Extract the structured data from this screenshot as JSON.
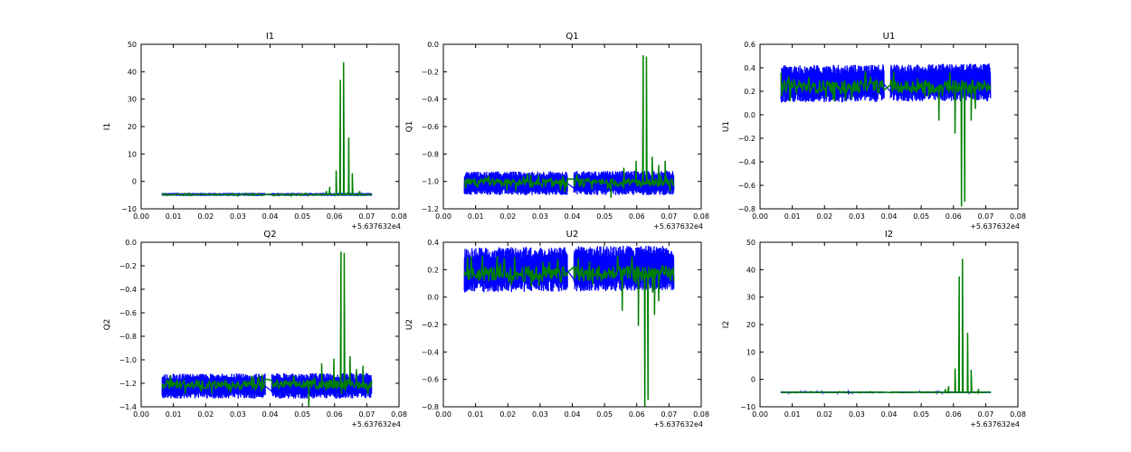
{
  "chart_data": [
    {
      "type": "line",
      "title": "I1",
      "ylabel": "I1",
      "xlabel": "",
      "xlim": [
        0.0,
        0.08
      ],
      "ylim": [
        -10,
        50
      ],
      "xticks": [
        "0.00",
        "0.01",
        "0.02",
        "0.03",
        "0.04",
        "0.05",
        "0.06",
        "0.07",
        "0.08"
      ],
      "yticks": [
        "−10",
        "0",
        "10",
        "20",
        "30",
        "40",
        "50"
      ],
      "yticks_values": [
        -10,
        0,
        10,
        20,
        30,
        40,
        50
      ],
      "x_offset_label": "+5.637632e4",
      "grid": false,
      "series": [
        {
          "color": "#0000ff",
          "kind": "band",
          "segments": [
            [
              0.0065,
              0.0385
            ],
            [
              0.0405,
              0.0715
            ]
          ],
          "y_low": [
            -5.3,
            -5.3
          ],
          "y_high": [
            -4.2,
            -4.2
          ]
        },
        {
          "color": "#008000",
          "kind": "noise",
          "baseline": -4.8,
          "spikes": [
            [
              0.0575,
              -3.5
            ],
            [
              0.0585,
              -2.0
            ],
            [
              0.0605,
              4.0
            ],
            [
              0.0618,
              37.0
            ],
            [
              0.0628,
              43.5
            ],
            [
              0.0644,
              16.0
            ],
            [
              0.0655,
              3.0
            ],
            [
              0.0678,
              -3.5
            ]
          ]
        }
      ]
    },
    {
      "type": "line",
      "title": "Q1",
      "ylabel": "Q1",
      "xlabel": "",
      "xlim": [
        0.0,
        0.08
      ],
      "ylim": [
        -1.2,
        0.0
      ],
      "xticks": [
        "0.00",
        "0.01",
        "0.02",
        "0.03",
        "0.04",
        "0.05",
        "0.06",
        "0.07",
        "0.08"
      ],
      "yticks": [
        "−1.2",
        "−1.0",
        "−0.8",
        "−0.6",
        "−0.4",
        "−0.2",
        "0.0"
      ],
      "yticks_values": [
        -1.2,
        -1.0,
        -0.8,
        -0.6,
        -0.4,
        -0.2,
        0.0
      ],
      "x_offset_label": "+5.637632e4",
      "grid": false,
      "series": [
        {
          "color": "#0000ff",
          "kind": "band",
          "segments": [
            [
              0.0065,
              0.0385
            ],
            [
              0.0405,
              0.0715
            ]
          ],
          "y_low": [
            -1.1,
            -1.1
          ],
          "y_high": [
            -0.93,
            -0.92
          ]
        },
        {
          "color": "#008000",
          "kind": "noise",
          "baseline": -1.01,
          "spikes": [
            [
              0.052,
              -1.12
            ],
            [
              0.056,
              -0.9
            ],
            [
              0.0598,
              -0.85
            ],
            [
              0.062,
              -0.08
            ],
            [
              0.063,
              -0.09
            ],
            [
              0.0648,
              -0.82
            ],
            [
              0.0668,
              -0.88
            ],
            [
              0.0688,
              -0.85
            ]
          ]
        }
      ]
    },
    {
      "type": "line",
      "title": "U1",
      "ylabel": "U1",
      "xlabel": "",
      "xlim": [
        0.0,
        0.08
      ],
      "ylim": [
        -0.8,
        0.6
      ],
      "xticks": [
        "0.00",
        "0.01",
        "0.02",
        "0.03",
        "0.04",
        "0.05",
        "0.06",
        "0.07",
        "0.08"
      ],
      "yticks": [
        "−0.8",
        "−0.6",
        "−0.4",
        "−0.2",
        "0.0",
        "0.2",
        "0.4",
        "0.6"
      ],
      "yticks_values": [
        -0.8,
        -0.6,
        -0.4,
        -0.2,
        0.0,
        0.2,
        0.4,
        0.6
      ],
      "x_offset_label": "+5.637632e4",
      "grid": false,
      "series": [
        {
          "color": "#0000ff",
          "kind": "band",
          "segments": [
            [
              0.0065,
              0.0385
            ],
            [
              0.0405,
              0.0715
            ]
          ],
          "y_low": [
            0.1,
            0.12
          ],
          "y_high": [
            0.42,
            0.44
          ]
        },
        {
          "color": "#008000",
          "kind": "noise",
          "baseline": 0.24,
          "spikes": [
            [
              0.0555,
              -0.05
            ],
            [
              0.0605,
              -0.16
            ],
            [
              0.0625,
              -0.78
            ],
            [
              0.0635,
              -0.74
            ],
            [
              0.0655,
              -0.05
            ],
            [
              0.0668,
              0.05
            ]
          ]
        }
      ]
    },
    {
      "type": "line",
      "title": "Q2",
      "ylabel": "Q2",
      "xlabel": "",
      "xlim": [
        0.0,
        0.08
      ],
      "ylim": [
        -1.4,
        0.0
      ],
      "xticks": [
        "0.00",
        "0.01",
        "0.02",
        "0.03",
        "0.04",
        "0.05",
        "0.06",
        "0.07",
        "0.08"
      ],
      "yticks": [
        "−1.4",
        "−1.2",
        "−1.0",
        "−0.8",
        "−0.6",
        "−0.4",
        "−0.2",
        "0.0"
      ],
      "yticks_values": [
        -1.4,
        -1.2,
        -1.0,
        -0.8,
        -0.6,
        -0.4,
        -0.2,
        0.0
      ],
      "x_offset_label": "+5.637632e4",
      "grid": false,
      "series": [
        {
          "color": "#0000ff",
          "kind": "band",
          "segments": [
            [
              0.0065,
              0.0385
            ],
            [
              0.0405,
              0.0715
            ]
          ],
          "y_low": [
            -1.33,
            -1.33
          ],
          "y_high": [
            -1.12,
            -1.11
          ]
        },
        {
          "color": "#008000",
          "kind": "noise",
          "baseline": -1.21,
          "spikes": [
            [
              0.052,
              -1.4
            ],
            [
              0.056,
              -1.03
            ],
            [
              0.0598,
              -0.99
            ],
            [
              0.062,
              -0.08
            ],
            [
              0.063,
              -0.09
            ],
            [
              0.0648,
              -0.97
            ],
            [
              0.0668,
              -1.08
            ],
            [
              0.0688,
              -1.05
            ]
          ]
        }
      ]
    },
    {
      "type": "line",
      "title": "U2",
      "ylabel": "U2",
      "xlabel": "",
      "xlim": [
        0.0,
        0.08
      ],
      "ylim": [
        -0.8,
        0.4
      ],
      "xticks": [
        "0.00",
        "0.01",
        "0.02",
        "0.03",
        "0.04",
        "0.05",
        "0.06",
        "0.07",
        "0.08"
      ],
      "yticks": [
        "−0.8",
        "−0.6",
        "−0.4",
        "−0.2",
        "0.0",
        "0.2",
        "0.4"
      ],
      "yticks_values": [
        -0.8,
        -0.6,
        -0.4,
        -0.2,
        0.0,
        0.2,
        0.4
      ],
      "x_offset_label": "+5.637632e4",
      "grid": false,
      "series": [
        {
          "color": "#0000ff",
          "kind": "band",
          "segments": [
            [
              0.0065,
              0.0385
            ],
            [
              0.0405,
              0.0715
            ]
          ],
          "y_low": [
            0.03,
            0.05
          ],
          "y_high": [
            0.36,
            0.38
          ]
        },
        {
          "color": "#008000",
          "kind": "noise",
          "baseline": 0.17,
          "spikes": [
            [
              0.0555,
              -0.1
            ],
            [
              0.0605,
              -0.21
            ],
            [
              0.0625,
              -0.88
            ],
            [
              0.0635,
              -0.75
            ],
            [
              0.0655,
              -0.13
            ],
            [
              0.0668,
              -0.03
            ]
          ]
        }
      ]
    },
    {
      "type": "line",
      "title": "I2",
      "ylabel": "I2",
      "xlabel": "",
      "xlim": [
        0.0,
        0.08
      ],
      "ylim": [
        -10,
        50
      ],
      "xticks": [
        "0.00",
        "0.01",
        "0.02",
        "0.03",
        "0.04",
        "0.05",
        "0.06",
        "0.07",
        "0.08"
      ],
      "yticks": [
        "−10",
        "0",
        "10",
        "20",
        "30",
        "40",
        "50"
      ],
      "yticks_values": [
        -10,
        0,
        10,
        20,
        30,
        40,
        50
      ],
      "x_offset_label": "+5.637632e4",
      "grid": false,
      "series": [
        {
          "color": "#0000ff",
          "kind": "band",
          "segments": [
            [
              0.0065,
              0.0385
            ],
            [
              0.0405,
              0.0715
            ]
          ],
          "y_low": [
            -5.0,
            -5.0
          ],
          "y_high": [
            -4.4,
            -4.4
          ]
        },
        {
          "color": "#008000",
          "kind": "noise",
          "baseline": -4.7,
          "spikes": [
            [
              0.0575,
              -3.5
            ],
            [
              0.0585,
              -2.5
            ],
            [
              0.0605,
              4.0
            ],
            [
              0.0618,
              37.5
            ],
            [
              0.0628,
              44.0
            ],
            [
              0.0644,
              17.0
            ],
            [
              0.0655,
              3.5
            ],
            [
              0.0678,
              -3.5
            ]
          ]
        }
      ]
    }
  ]
}
